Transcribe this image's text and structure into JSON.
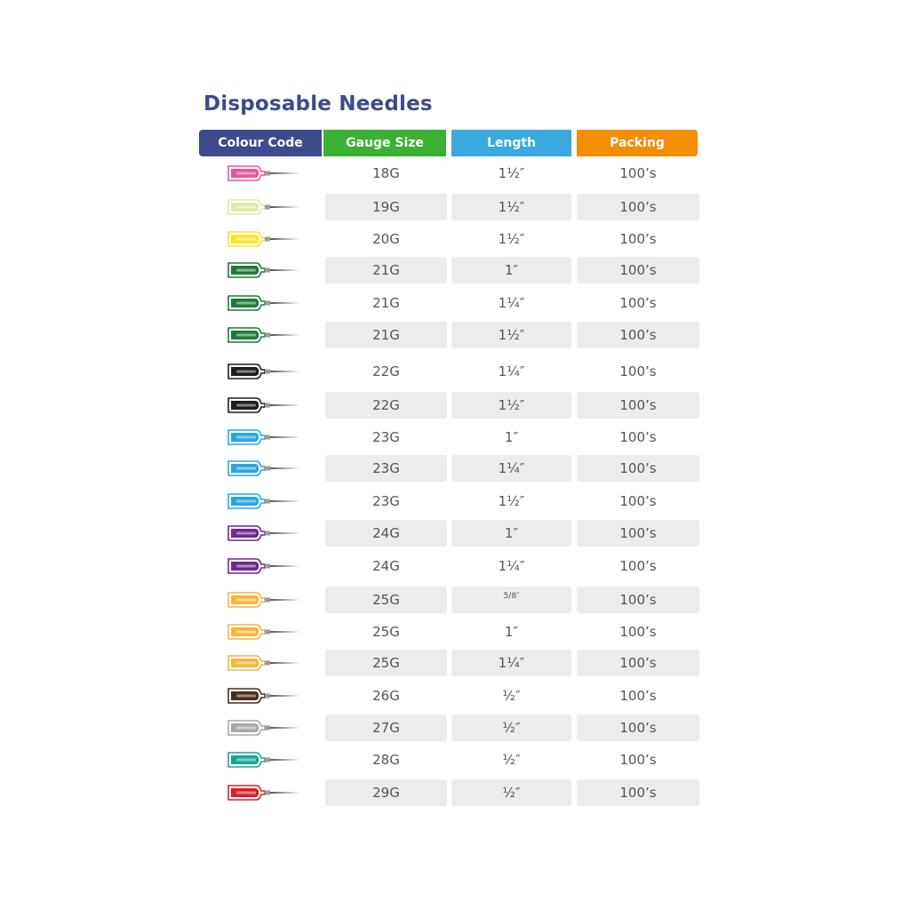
{
  "title": "Disposable Needles",
  "headers": {
    "colour_code": "Colour Code",
    "gauge_size": "Gauge Size",
    "length": "Length",
    "packing": "Packing"
  },
  "header_colors": {
    "colour_code": "#3e4a8c",
    "gauge_size": "#3cb034",
    "length": "#3aa9e0",
    "packing": "#f28e00"
  },
  "rows": [
    {
      "icon": "needle-icon",
      "color": "#e8559a",
      "gauge": "18G",
      "length": "1½″",
      "packing": "100’s"
    },
    {
      "icon": "needle-icon",
      "color": "#e4e8a6",
      "gauge": "19G",
      "length": "1½″",
      "packing": "100’s"
    },
    {
      "icon": "needle-icon",
      "color": "#f5e82a",
      "gauge": "20G",
      "length": "1½″",
      "packing": "100’s"
    },
    {
      "icon": "needle-icon",
      "color": "#1e7a3c",
      "gauge": "21G",
      "length": "1″",
      "packing": "100’s"
    },
    {
      "icon": "needle-icon",
      "color": "#1e7a3c",
      "gauge": "21G",
      "length": "1¼″",
      "packing": "100’s"
    },
    {
      "icon": "needle-icon",
      "color": "#1e7a3c",
      "gauge": "21G",
      "length": "1½″",
      "packing": "100’s"
    },
    {
      "icon": "needle-icon",
      "color": "#1e1e1e",
      "gauge": "22G",
      "length": "1¼″",
      "packing": "100’s"
    },
    {
      "icon": "needle-icon",
      "color": "#1e1e1e",
      "gauge": "22G",
      "length": "1½″",
      "packing": "100’s"
    },
    {
      "icon": "needle-icon",
      "color": "#2aa6e0",
      "gauge": "23G",
      "length": "1″",
      "packing": "100’s"
    },
    {
      "icon": "needle-icon",
      "color": "#2aa6e0",
      "gauge": "23G",
      "length": "1¼″",
      "packing": "100’s"
    },
    {
      "icon": "needle-icon",
      "color": "#2aa6e0",
      "gauge": "23G",
      "length": "1½″",
      "packing": "100’s"
    },
    {
      "icon": "needle-icon",
      "color": "#6a2a8e",
      "gauge": "24G",
      "length": "1″",
      "packing": "100’s"
    },
    {
      "icon": "needle-icon",
      "color": "#6a2a8e",
      "gauge": "24G",
      "length": "1¼″",
      "packing": "100’s"
    },
    {
      "icon": "needle-icon",
      "color": "#f5b540",
      "gauge": "25G",
      "length": "5/8″",
      "packing": "100’s"
    },
    {
      "icon": "needle-icon",
      "color": "#f5b540",
      "gauge": "25G",
      "length": "1″",
      "packing": "100’s"
    },
    {
      "icon": "needle-icon",
      "color": "#f5b540",
      "gauge": "25G",
      "length": "1¼″",
      "packing": "100’s"
    },
    {
      "icon": "needle-icon",
      "color": "#4a2e1e",
      "gauge": "26G",
      "length": "½″",
      "packing": "100’s"
    },
    {
      "icon": "needle-icon",
      "color": "#a8a8a8",
      "gauge": "27G",
      "length": "½″",
      "packing": "100’s"
    },
    {
      "icon": "needle-icon",
      "color": "#1aa596",
      "gauge": "28G",
      "length": "½″",
      "packing": "100’s"
    },
    {
      "icon": "needle-icon",
      "color": "#e01e26",
      "gauge": "29G",
      "length": "½″",
      "packing": "100’s"
    }
  ]
}
